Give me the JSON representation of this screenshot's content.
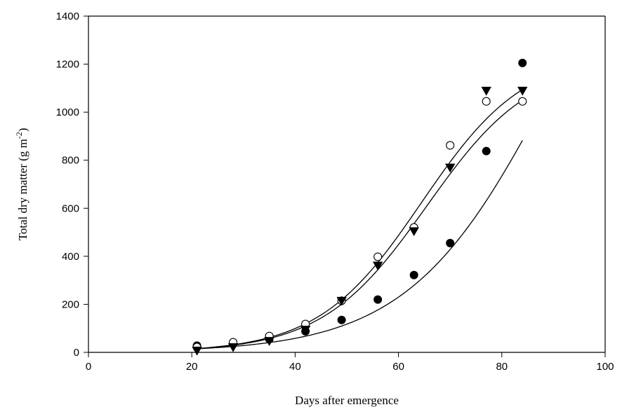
{
  "chart_data": {
    "type": "scatter",
    "xlabel": "Days after emergence",
    "ylabel_main": "Total dry matter (g m",
    "ylabel_sup": "-2",
    "ylabel_close": ")",
    "xlim": [
      0,
      100
    ],
    "ylim": [
      0,
      1400
    ],
    "xticks": [
      0,
      20,
      40,
      60,
      80,
      100
    ],
    "yticks": [
      0,
      200,
      400,
      600,
      800,
      1000,
      1200,
      1400
    ],
    "grid": false,
    "legend": "none",
    "series": [
      {
        "marker": "filled-circle",
        "x": [
          21,
          28,
          35,
          42,
          49,
          56,
          63,
          70,
          77,
          84
        ],
        "y": [
          28,
          35,
          55,
          88,
          135,
          220,
          322,
          455,
          838,
          1205
        ],
        "fit": {
          "L": 2200,
          "k": 0.0728,
          "x0": 89.5
        }
      },
      {
        "marker": "open-circle",
        "x": [
          21,
          28,
          35,
          42,
          49,
          56,
          63,
          70,
          77,
          84
        ],
        "y": [
          22,
          42,
          68,
          118,
          215,
          398,
          520,
          862,
          1045,
          1045
        ],
        "fit": {
          "L": 1250,
          "k": 0.1,
          "x0": 64.5
        }
      },
      {
        "marker": "filled-triangle-down",
        "x": [
          21,
          28,
          35,
          42,
          49,
          56,
          63,
          70,
          77,
          84
        ],
        "y": [
          8,
          22,
          48,
          95,
          215,
          362,
          505,
          770,
          1090,
          1090
        ],
        "fit": {
          "L": 1220,
          "k": 0.0985,
          "x0": 65.5
        }
      }
    ]
  }
}
